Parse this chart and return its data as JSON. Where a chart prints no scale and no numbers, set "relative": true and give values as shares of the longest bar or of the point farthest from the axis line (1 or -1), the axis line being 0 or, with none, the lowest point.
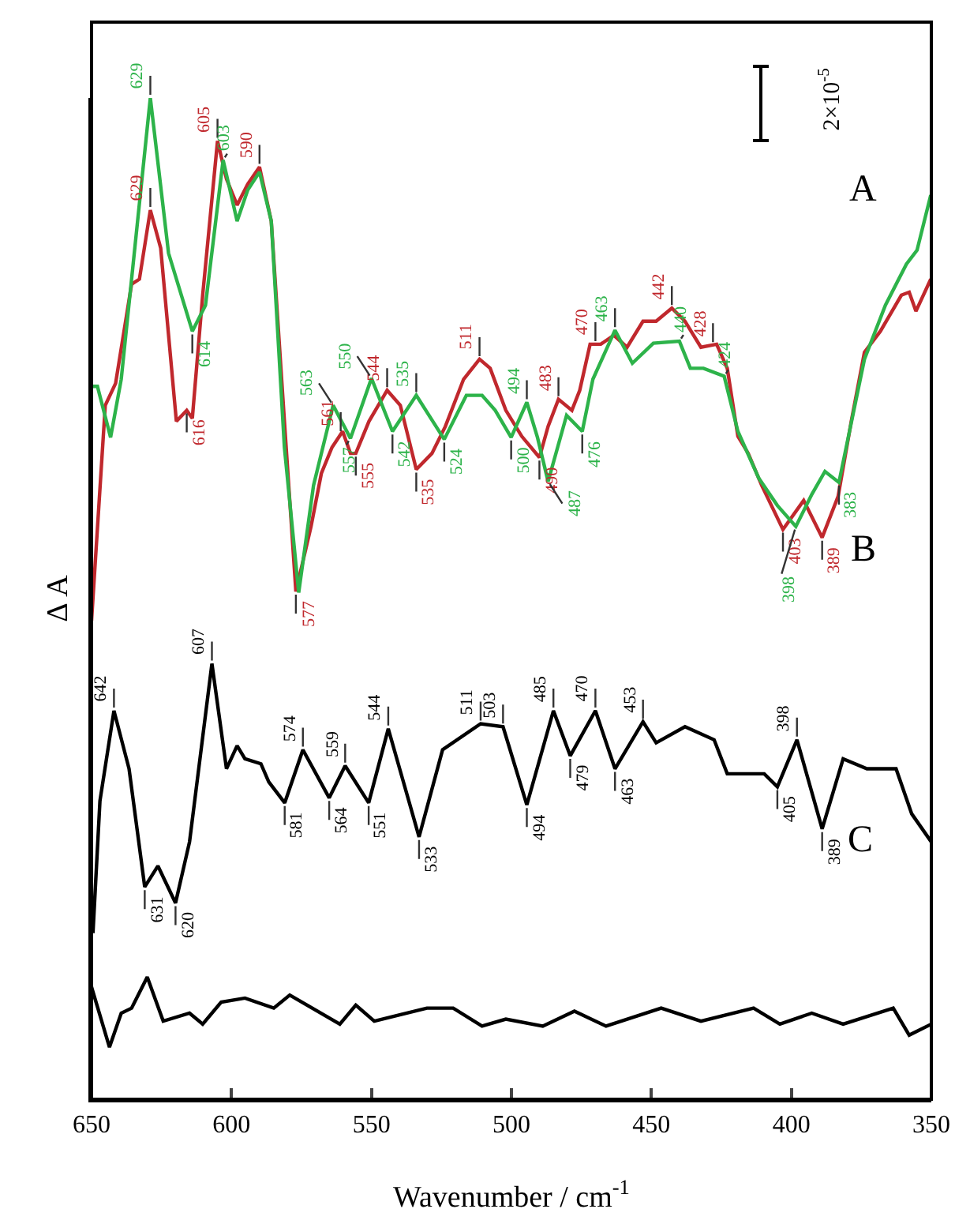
{
  "chart_data": {
    "type": "line",
    "relative": true,
    "xlabel": "Wavenumber / cm$^{-1}$",
    "ylabel": "Δ A",
    "xlim": [
      650,
      350
    ],
    "xticks": [
      650,
      600,
      550,
      500,
      450,
      400,
      350
    ],
    "series": [
      {
        "color": "#c0282d",
        "x": [
          650,
          645.1,
          641.4,
          635.7,
          632.9,
          629,
          625.3,
          619.7,
          616,
          614,
          610.3,
          605,
          601.8,
          598,
          594.2,
          590,
          585.8,
          581.1,
          577,
          571.6,
          567.9,
          564.1,
          560.3,
          557.5,
          555.6,
          550.9,
          544.4,
          539.7,
          534,
          528.4,
          523.6,
          517.1,
          511.4,
          507.6,
          502,
          496.3,
          490,
          486.9,
          483.2,
          478.4,
          475.6,
          471.9,
          468.1,
          463.4,
          458.7,
          453,
          448.3,
          442.7,
          438,
          432.3,
          426.7,
          422.9,
          419.1,
          415.4,
          410.6,
          403,
          395.6,
          389,
          383.3,
          378.6,
          373.9,
          368.2,
          360.7,
          357.9,
          355.5,
          350.2
        ],
        "values": [
          0.478,
          0.693,
          0.715,
          0.814,
          0.819,
          0.888,
          0.85,
          0.677,
          0.688,
          0.68,
          0.803,
          0.957,
          0.919,
          0.893,
          0.914,
          0.931,
          0.877,
          0.677,
          0.507,
          0.572,
          0.625,
          0.651,
          0.667,
          0.645,
          0.645,
          0.677,
          0.708,
          0.693,
          0.629,
          0.645,
          0.672,
          0.719,
          0.739,
          0.73,
          0.688,
          0.662,
          0.641,
          0.672,
          0.699,
          0.688,
          0.708,
          0.754,
          0.754,
          0.763,
          0.751,
          0.777,
          0.777,
          0.79,
          0.777,
          0.751,
          0.754,
          0.73,
          0.662,
          0.645,
          0.613,
          0.569,
          0.598,
          0.561,
          0.602,
          0.677,
          0.746,
          0.767,
          0.803,
          0.806,
          0.787,
          0.819
        ]
      },
      {
        "color": "#2db34a",
        "x": [
          650,
          647.9,
          643.2,
          639.4,
          629,
          622.5,
          614,
          609.3,
          603,
          598,
          594.2,
          590,
          585.8,
          581.1,
          576,
          570.7,
          563.7,
          557.5,
          550,
          542.5,
          534,
          524,
          516.1,
          510.5,
          505.8,
          500.1,
          494.5,
          490.7,
          486.9,
          480.3,
          474.7,
          470.9,
          463,
          456.8,
          449.3,
          440,
          436.1,
          431.4,
          424,
          419.1,
          411.6,
          405,
          398.4,
          392.7,
          388,
          383,
          373.9,
          366.4,
          358.9,
          355.1,
          350.2
        ],
        "values": [
          0.712,
          0.712,
          0.661,
          0.719,
          1.0,
          0.845,
          0.767,
          0.793,
          0.938,
          0.877,
          0.908,
          0.926,
          0.877,
          0.651,
          0.506,
          0.613,
          0.693,
          0.66,
          0.72,
          0.667,
          0.703,
          0.659,
          0.703,
          0.703,
          0.688,
          0.661,
          0.696,
          0.661,
          0.617,
          0.683,
          0.667,
          0.719,
          0.768,
          0.735,
          0.755,
          0.757,
          0.73,
          0.73,
          0.722,
          0.667,
          0.62,
          0.593,
          0.572,
          0.604,
          0.627,
          0.616,
          0.739,
          0.793,
          0.834,
          0.848,
          0.903
        ]
      },
      {
        "color": "#000000",
        "x": [
          649.5,
          647,
          642,
          636.6,
          631,
          626.3,
          620,
          615,
          607,
          601.8,
          598,
          595.2,
          589.5,
          586.7,
          581,
          574.5,
          565.1,
          559.4,
          551,
          544,
          533,
          524.6,
          511,
          503,
          494.5,
          485,
          479,
          470,
          463,
          453,
          448.3,
          438,
          427.6,
          422.9,
          409.7,
          405,
          398,
          389,
          381.5,
          373,
          362.6,
          357,
          350
        ],
        "values": [
          0.166,
          0.298,
          0.388,
          0.33,
          0.212,
          0.233,
          0.196,
          0.257,
          0.435,
          0.33,
          0.353,
          0.34,
          0.335,
          0.317,
          0.296,
          0.349,
          0.301,
          0.333,
          0.296,
          0.37,
          0.262,
          0.349,
          0.375,
          0.372,
          0.294,
          0.388,
          0.343,
          0.388,
          0.33,
          0.377,
          0.356,
          0.372,
          0.359,
          0.325,
          0.325,
          0.312,
          0.359,
          0.27,
          0.34,
          0.33,
          0.33,
          0.285,
          0.257
        ]
      },
      {
        "color": "#000000",
        "x": [
          650,
          643.6,
          639.4,
          635.7,
          630.1,
          624.4,
          615,
          610.3,
          603.7,
          595.2,
          584.9,
          579.2,
          561.3,
          555.6,
          549,
          530.2,
          520.8,
          510.5,
          502,
          488.8,
          477.5,
          466.2,
          446.5,
          432.3,
          413.5,
          404.1,
          392.7,
          381.5,
          363.6,
          357.9,
          350
        ],
        "values": [
          0.112,
          0.052,
          0.086,
          0.091,
          0.122,
          0.078,
          0.086,
          0.075,
          0.097,
          0.101,
          0.091,
          0.104,
          0.075,
          0.094,
          0.078,
          0.091,
          0.091,
          0.073,
          0.08,
          0.073,
          0.088,
          0.073,
          0.091,
          0.078,
          0.091,
          0.075,
          0.086,
          0.075,
          0.091,
          0.064,
          0.075
        ]
      }
    ],
    "annotations": [
      "2×10$^{-5}$",
      "A",
      "B",
      "C",
      {
        "text": "629",
        "x": 629,
        "y": 0.888
      },
      {
        "text": "605",
        "x": 605,
        "y": 0.957
      },
      {
        "text": "590",
        "x": 590,
        "y": 0.931
      },
      {
        "text": "616",
        "x": 616,
        "y": 0.688
      },
      {
        "text": "577",
        "x": 577,
        "y": 0.507
      },
      {
        "text": "561",
        "x": 561,
        "y": 0.664
      },
      {
        "text": "555",
        "x": 555.6,
        "y": 0.645
      },
      {
        "text": "544",
        "x": 544.4,
        "y": 0.708
      },
      {
        "text": "535",
        "x": 534,
        "y": 0.629
      },
      {
        "text": "511",
        "x": 511.4,
        "y": 0.739
      },
      {
        "text": "490",
        "x": 490,
        "y": 0.641
      },
      {
        "text": "483",
        "x": 483.2,
        "y": 0.699
      },
      {
        "text": "470",
        "x": 470,
        "y": 0.754
      },
      {
        "text": "442",
        "x": 442.7,
        "y": 0.79
      },
      {
        "text": "428",
        "x": 428,
        "y": 0.753
      },
      {
        "text": "403",
        "x": 403,
        "y": 0.569
      },
      {
        "text": "389",
        "x": 389,
        "y": 0.561
      },
      {
        "text": "629",
        "x": 629,
        "y": 1.0
      },
      {
        "text": "603",
        "x": 603,
        "y": 0.938
      },
      {
        "text": "614",
        "x": 614,
        "y": 0.767
      },
      {
        "text": "563",
        "x": 563.7,
        "y": 0.693
      },
      {
        "text": "557",
        "x": 557.5,
        "y": 0.66
      },
      {
        "text": "550",
        "x": 550,
        "y": 0.72
      },
      {
        "text": "542",
        "x": 542.5,
        "y": 0.667
      },
      {
        "text": "535",
        "x": 534,
        "y": 0.703
      },
      {
        "text": "524",
        "x": 524,
        "y": 0.659
      },
      {
        "text": "500",
        "x": 500.1,
        "y": 0.661
      },
      {
        "text": "494",
        "x": 494.5,
        "y": 0.696
      },
      {
        "text": "487",
        "x": 486.9,
        "y": 0.617
      },
      {
        "text": "476",
        "x": 474.7,
        "y": 0.667
      },
      {
        "text": "463",
        "x": 463,
        "y": 0.768
      },
      {
        "text": "440",
        "x": 440,
        "y": 0.757
      },
      {
        "text": "424",
        "x": 424,
        "y": 0.722
      },
      {
        "text": "398",
        "x": 398.4,
        "y": 0.572
      },
      {
        "text": "383",
        "x": 383,
        "y": 0.616
      },
      {
        "text": "642",
        "x": 642,
        "y": 0.388
      },
      {
        "text": "631",
        "x": 631,
        "y": 0.212
      },
      {
        "text": "620",
        "x": 620,
        "y": 0.196
      },
      {
        "text": "607",
        "x": 607,
        "y": 0.435
      },
      {
        "text": "581",
        "x": 581,
        "y": 0.296
      },
      {
        "text": "574",
        "x": 574.5,
        "y": 0.349
      },
      {
        "text": "564",
        "x": 565.1,
        "y": 0.301
      },
      {
        "text": "559",
        "x": 559.4,
        "y": 0.333
      },
      {
        "text": "551",
        "x": 551,
        "y": 0.296
      },
      {
        "text": "544",
        "x": 544,
        "y": 0.37
      },
      {
        "text": "533",
        "x": 533,
        "y": 0.262
      },
      {
        "text": "511",
        "x": 511,
        "y": 0.375
      },
      {
        "text": "503",
        "x": 503,
        "y": 0.372
      },
      {
        "text": "494",
        "x": 494.5,
        "y": 0.294
      },
      {
        "text": "485",
        "x": 485,
        "y": 0.388
      },
      {
        "text": "479",
        "x": 479,
        "y": 0.343
      },
      {
        "text": "470",
        "x": 470,
        "y": 0.388
      },
      {
        "text": "463",
        "x": 463,
        "y": 0.33
      },
      {
        "text": "453",
        "x": 453,
        "y": 0.377
      },
      {
        "text": "405",
        "x": 405,
        "y": 0.312
      },
      {
        "text": "398",
        "x": 398,
        "y": 0.359
      },
      {
        "text": "389",
        "x": 389,
        "y": 0.27
      }
    ]
  }
}
